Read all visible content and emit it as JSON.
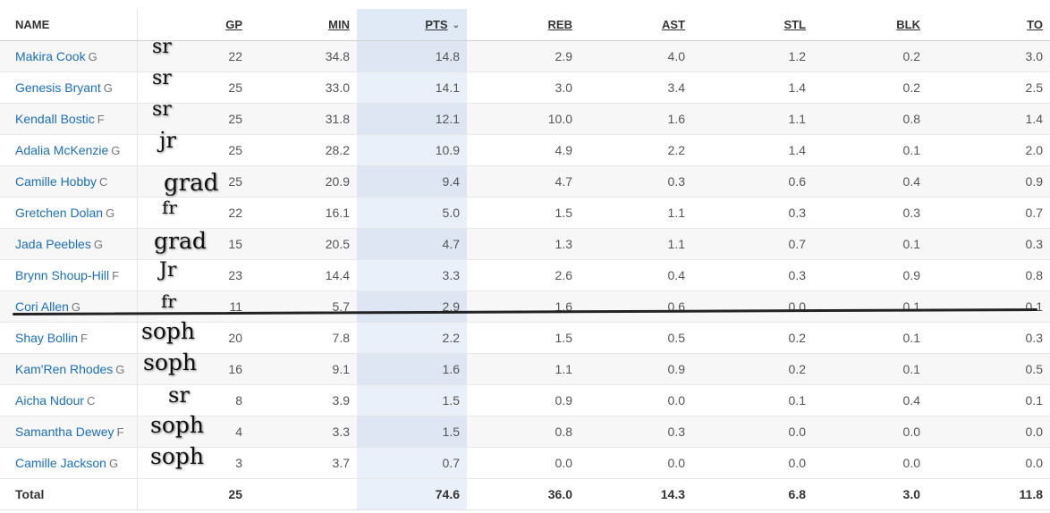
{
  "columns": {
    "name": "NAME",
    "gp": "GP",
    "min": "MIN",
    "pts": "PTS",
    "reb": "REB",
    "ast": "AST",
    "stl": "STL",
    "blk": "BLK",
    "to": "TO"
  },
  "sort_icon": "chevron-down-icon",
  "rows": [
    {
      "name": "Makira Cook",
      "pos": "G",
      "gp": "22",
      "min": "34.8",
      "pts": "14.8",
      "reb": "2.9",
      "ast": "4.0",
      "stl": "1.2",
      "blk": "0.2",
      "to": "3.0"
    },
    {
      "name": "Genesis Bryant",
      "pos": "G",
      "gp": "25",
      "min": "33.0",
      "pts": "14.1",
      "reb": "3.0",
      "ast": "3.4",
      "stl": "1.4",
      "blk": "0.2",
      "to": "2.5"
    },
    {
      "name": "Kendall Bostic",
      "pos": "F",
      "gp": "25",
      "min": "31.8",
      "pts": "12.1",
      "reb": "10.0",
      "ast": "1.6",
      "stl": "1.1",
      "blk": "0.8",
      "to": "1.4"
    },
    {
      "name": "Adalia McKenzie",
      "pos": "G",
      "gp": "25",
      "min": "28.2",
      "pts": "10.9",
      "reb": "4.9",
      "ast": "2.2",
      "stl": "1.4",
      "blk": "0.1",
      "to": "2.0"
    },
    {
      "name": "Camille Hobby",
      "pos": "C",
      "gp": "25",
      "min": "20.9",
      "pts": "9.4",
      "reb": "4.7",
      "ast": "0.3",
      "stl": "0.6",
      "blk": "0.4",
      "to": "0.9"
    },
    {
      "name": "Gretchen Dolan",
      "pos": "G",
      "gp": "22",
      "min": "16.1",
      "pts": "5.0",
      "reb": "1.5",
      "ast": "1.1",
      "stl": "0.3",
      "blk": "0.3",
      "to": "0.7"
    },
    {
      "name": "Jada Peebles",
      "pos": "G",
      "gp": "15",
      "min": "20.5",
      "pts": "4.7",
      "reb": "1.3",
      "ast": "1.1",
      "stl": "0.7",
      "blk": "0.1",
      "to": "0.3"
    },
    {
      "name": "Brynn Shoup-Hill",
      "pos": "F",
      "gp": "23",
      "min": "14.4",
      "pts": "3.3",
      "reb": "2.6",
      "ast": "0.4",
      "stl": "0.3",
      "blk": "0.9",
      "to": "0.8"
    },
    {
      "name": "Cori Allen",
      "pos": "G",
      "gp": "11",
      "min": "5.7",
      "pts": "2.9",
      "reb": "1.6",
      "ast": "0.6",
      "stl": "0.0",
      "blk": "0.1",
      "to": "0.1"
    },
    {
      "name": "Shay Bollin",
      "pos": "F",
      "gp": "20",
      "min": "7.8",
      "pts": "2.2",
      "reb": "1.5",
      "ast": "0.5",
      "stl": "0.2",
      "blk": "0.1",
      "to": "0.3"
    },
    {
      "name": "Kam'Ren Rhodes",
      "pos": "G",
      "gp": "16",
      "min": "9.1",
      "pts": "1.6",
      "reb": "1.1",
      "ast": "0.9",
      "stl": "0.2",
      "blk": "0.1",
      "to": "0.5"
    },
    {
      "name": "Aicha Ndour",
      "pos": "C",
      "gp": "8",
      "min": "3.9",
      "pts": "1.5",
      "reb": "0.9",
      "ast": "0.0",
      "stl": "0.1",
      "blk": "0.4",
      "to": "0.1"
    },
    {
      "name": "Samantha Dewey",
      "pos": "F",
      "gp": "4",
      "min": "3.3",
      "pts": "1.5",
      "reb": "0.8",
      "ast": "0.3",
      "stl": "0.0",
      "blk": "0.0",
      "to": "0.0"
    },
    {
      "name": "Camille Jackson",
      "pos": "G",
      "gp": "3",
      "min": "3.7",
      "pts": "0.7",
      "reb": "0.0",
      "ast": "0.0",
      "stl": "0.0",
      "blk": "0.0",
      "to": "0.0"
    }
  ],
  "total": {
    "label": "Total",
    "gp": "25",
    "min": "",
    "pts": "74.6",
    "reb": "36.0",
    "ast": "14.3",
    "stl": "6.8",
    "blk": "3.0",
    "to": "11.8"
  },
  "annotations": [
    "sr",
    "sr",
    "sr",
    "jr",
    "grad",
    "fr",
    "grad",
    "Jr",
    "fr",
    "soph",
    "soph",
    "sr",
    "soph",
    "soph"
  ]
}
